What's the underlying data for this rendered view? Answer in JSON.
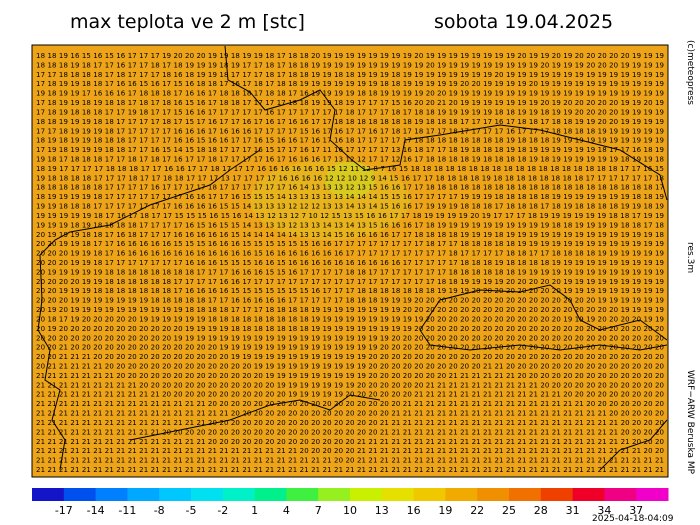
{
  "title": "max teplota ve 2 m [stc]",
  "date": "sobota 19.04.2025",
  "credit": "(c)meteopress",
  "resolution": "res.3m",
  "model": "WRF−ARW Beruska MP",
  "timestamp": "2025-04-18-04:09",
  "grid_rows": [
    "18 18 19 16 15 16 15 16 17 17 17 19 20 20 20 19 19 18 19 19 18 17 18 18 20 19 19 19 19 19 19 19 19 20 19 19 19 19 19 19 19 19 20 19 19 20 19 20 20 20 20 20 19 19 19",
    "18 18 18 19 18 17 17 16 17 17 18 17 18 19 19 19 18 19 17 17 18 17 18 18 19 19 19 19 19 19 19 19 19 19 20 19 19 19 19 19 19 19 19 19 20 19 19 19 20 20 20 19 19 19 19",
    "17 17 18 18 18 18 17 18 17 17 17 18 16 18 19 19 18 17 17 17 18 17 18 18 19 19 18 18 19 19 19 18 19 19 19 19 19 19 19 19 20 19 19 19 19 19 19 19 19 19 19 19 19 19 19",
    "17 18 19 19 18 18 17 16 16 15 16 17 15 16 18 18 17 16 17 18 17 18 18 19 19 19 19 19 19 19 18 18 19 19 19 19 19 20 20 19 19 19 19 20 19 19 19 19 19 19 19 19 19 19 19",
    "19 18 19 19 17 16 16 16 17 18 18 18 17 16 16 17 18 18 18 17 18 18 17 16 19 19 19 19 18 18 19 19 19 19 20 20 19 19 19 19 19 19 19 19 19 19 19 19 19 19 19 19 19 19 19",
    "17 18 19 19 18 19 18 18 17 18 17 18 16 15 16 17 18 18 17 17 17 17 18 18 19 19 18 19 17 17 17 15 16 20 20 21 20 19 19 19 19 19 19 19 20 19 20 20 20 20 20 19 19 20 19",
    "17 18 19 18 18 18 17 17 19 18 17 17 15 16 16 17 17 17 17 17 16 17 17 17 17 17 17 18 17 17 17 18 17 18 18 19 19 19 19 19 18 18 19 19 18 19 19 20 20 20 20 19 19 19 19",
    "18 18 19 19 19 18 18 17 17 17 17 18 17 15 17 16 17 17 16 17 16 17 16 16 17 17 18 18 18 18 18 18 18 19 18 18 18 17 17 17 16 17 18 18 17 18 18 19 19 20 20 19 19 19 19",
    "17 17 18 19 19 19 18 17 17 17 17 17 16 16 16 17 16 16 16 17 17 17 17 15 16 17 16 17 17 16 17 18 17 18 17 17 18 17 17 17 17 16 17 17 17 18 18 18 18 19 19 19 19 19 19",
    "18 19 18 19 19 18 18 18 17 17 17 17 16 16 15 16 16 17 17 16 15 16 16 17 16 17 16 18 17 17 17 17 17 18 18 18 18 18 18 18 18 19 18 18 18 19 19 19 19 19 19 19 19 19 19",
    "17 19 18 19 19 19 18 18 17 17 16 15 14 15 18 18 17 17 17 16 15 17 17 16 17 11 16 17 17 17 17 13 16 18 17 17 18 19 18 18 18 19 18 19 19 19 19 19 19 18 17 17 16 18 19",
    "19 18 17 18 18 18 17 17 18 17 18 17 16 17 17 18 17 17 17 17 16 17 16 16 16 17 13 12 12 17 17 12 16 17 18 18 18 18 19 18 18 18 18 19 18 19 19 19 19 19 19 18 19 19 18",
    "18 19 17 17 17 17 18 18 18 17 17 16 16 17 17 18 17 17 17 16 16 16 16 16 16 15 12 11 12 8 7 16 15 18 18 18 18 18 18 18 18 18 18 18 18 18 18 18 18 18 18 17 17 16 15",
    "19 18 18 18 18 17 17 17 18 17 17 18 18 17 17 17 13 17 17 17 17 16 16 16 16 12 12 10 12 9 14 15 16 17 17 18 18 18 18 19 18 18 18 18 18 18 18 18 17 17 17 17 17 17 18",
    "18 18 18 18 18 18 17 17 17 17 16 17 17 17 17 18 17 17 17 17 17 17 16 14 13 13 13 12 13 15 16 16 17 17 18 18 18 18 18 18 18 18 18 18 18 18 18 18 18 18 18 18 18 18 17",
    "18 19 19 19 19 18 17 17 17 17 17 17 17 16 16 17 17 16 15 15 15 14 13 13 13 13 13 14 14 14 15 15 16 17 17 17 17 19 19 19 18 18 18 18 18 19 19 19 19 19 19 19 18 18 19",
    "19 19 18 18 18 17 17 17 17 17 17 17 16 16 16 16 15 15 14 13 13 13 12 12 12 13 13 14 13 14 15 16 16 17 19 19 19 18 18 18 17 18 18 18 17 18 19 18 18 18 18 19 19 18 19",
    "19 19 19 19 19 18 17 16 17 18 17 17 15 15 15 16 15 16 14 13 12 13 12 7 10 12 15 13 15 16 16 17 17 18 19 19 19 19 20 19 17 17 17 18 19 19 19 19 19 19 18 18 17 19 19",
    "19 19 19 18 19 18 18 18 18 17 17 17 17 16 15 16 15 15 14 13 13 13 12 13 13 14 13 14 13 15 16 16 16 17 18 19 19 19 19 19 19 19 19 19 19 18 18 19 19 19 19 18 18 17 18",
    "20 19 19 19 18 18 17 16 18 17 17 17 16 16 16 16 16 15 14 14 14 14 14 13 13 14 15 16 16 16 16 17 17 18 18 18 18 19 19 19 18 19 19 19 19 19 19 19 19 19 19 19 19 19 18",
    "20 20 19 19 18 17 17 16 16 16 16 16 15 15 15 16 16 16 15 15 15 15 15 15 16 16 17 17 17 17 17 17 17 17 18 17 17 18 18 18 18 18 19 19 19 19 19 19 19 19 19 19 19 19 19",
    "20 20 20 19 19 18 17 16 16 16 16 16 16 16 16 16 16 16 16 15 16 16 16 16 16 16 16 17 17 17 17 17 17 17 17 17 18 17 17 17 17 18 18 17 17 18 18 18 18 19 19 19 19 19 19",
    "20 20 20 19 19 18 17 17 17 17 17 17 17 16 16 16 15 15 15 16 16 15 16 16 16 16 16 16 16 16 16 16 17 17 17 17 17 18 18 18 19 18 18 18 18 19 19 19 19 19 19 19 19 19 19",
    "20 19 19 19 19 19 18 18 18 18 18 18 18 18 17 17 17 16 16 16 15 15 16 17 17 17 17 18 18 17 17 17 17 17 17 17 18 18 18 18 18 18 19 19 19 19 19 19 19 19 19 19 19 19 19",
    "20 20 20 20 19 19 18 18 18 18 18 18 17 17 17 17 16 16 17 17 17 17 17 17 17 17 17 17 17 17 17 17 17 17 17 18 18 19 19 19 19 20 20 20 20 20 19 19 19 19 19 19 19 19 19",
    "20 20 19 19 19 18 18 18 18 18 18 18 17 16 16 16 16 15 15 15 15 15 15 15 16 17 17 17 18 18 18 18 18 18 18 19 19 19 20 20 20 20 20 20 20 20 19 19 19 19 19 19 19 19 19",
    "20 20 20 19 19 19 19 19 19 19 18 18 18 18 18 17 17 16 16 16 16 16 17 17 17 17 17 18 18 18 19 19 19 20 20 20 20 20 20 20 20 20 20 20 20 20 20 20 20 19 19 19 19 19 19",
    "20 19 20 19 19 19 19 19 19 19 19 19 19 18 18 18 18 17 17 17 18 18 18 18 19 19 19 19 19 19 19 19 20 20 20 20 20 20 20 20 20 20 20 20 20 20 20 20 20 20 20 19 19 19 19",
    "20 18 17 19 20 20 20 20 20 19 19 19 19 19 19 18 18 18 18 18 18 18 18 18 19 19 19 19 19 19 19 19 19 19 20 20 20 20 20 20 20 20 20 20 20 20 19 19 19 20 20 20 20 19 19",
    "20 19 20 20 20 20 20 20 20 20 20 20 20 19 19 19 19 18 18 18 18 18 18 18 19 19 19 19 19 19 19 19 19 20 20 20 20 20 20 20 20 20 20 20 20 20 20 20 20 20 20 20 20 20 20",
    "20 20 20 20 20 20 20 20 20 20 20 20 19 19 19 19 19 19 19 19 19 19 19 19 19 19 19 19 19 19 19 20 20 20 20 20 20 20 20 20 20 20 20 20 20 20 20 20 20 20 20 20 20 20 20",
    "20 20 21 20 20 20 20 20 20 20 20 20 20 20 20 20 19 19 19 19 19 19 19 19 19 19 19 19 19 19 20 20 20 20 20 20 20 20 20 20 20 20 20 20 20 20 20 20 20 20 20 20 20 20 20",
    "20 20 21 21 21 20 20 20 20 20 20 20 20 20 20 20 20 19 19 19 19 19 19 19 19 19 19 19 19 20 20 20 20 20 20 20 20 20 20 20 20 20 20 20 20 20 20 20 20 20 20 20 20 20 20",
    "20 21 21 21 21 21 20 20 20 20 20 20 20 20 20 20 20 20 20 19 19 19 19 19 19 19 19 19 19 20 20 20 20 20 20 20 20 20 20 21 21 20 20 20 20 20 20 20 20 20 20 20 20 20 20",
    "21 21 21 21 21 21 21 20 20 20 20 20 20 20 20 20 20 20 20 20 19 19 19 19 19 19 19 19 19 20 20 20 20 20 20 20 21 21 21 21 21 21 20 20 20 20 20 20 20 20 20 20 20 20 20",
    "21 21 21 21 21 21 21 21 21 20 20 20 20 20 20 20 20 20 20 20 20 19 19 19 19 19 19 19 20 20 20 20 20 20 21 21 21 21 21 21 21 21 21 21 20 20 20 20 20 20 20 20 20 20 20",
    "21 21 21 21 21 21 21 21 21 21 21 20 20 20 20 20 20 20 20 20 20 20 19 19 19 19 19 20 20 20 20 20 20 21 21 21 21 21 21 21 21 21 21 21 21 21 20 20 20 20 20 20 20 20 20",
    "21 21 21 21 21 21 21 21 21 21 21 21 21 21 21 20 20 20 20 20 20 20 20 20 20 20 20 20 20 20 20 20 21 21 21 21 21 21 21 21 21 21 21 21 21 21 21 21 20 20 20 20 20 20 20",
    "21 21 21 21 21 21 21 21 21 21 21 21 21 21 21 21 21 20 20 20 20 20 20 20 20 20 20 20 20 20 20 21 21 21 21 21 21 21 21 21 21 21 21 21 21 21 21 21 21 21 20 20 20 20 20",
    "21 21 21 21 21 21 21 21 21 21 21 21 21 21 21 20 20 20 20 20 20 20 20 20 20 20 20 20 20 20 21 21 21 21 21 21 21 21 21 21 21 21 21 21 21 21 21 21 21 21 21 20 20 20 20",
    "21 21 21 21 21 21 21 21 21 21 21 20 20 20 20 20 20 20 20 20 20 20 20 20 20 20 20 20 20 20 21 21 21 21 21 21 21 21 21 21 21 21 21 21 21 21 21 21 21 21 21 20 20 20 20",
    "21 21 21 21 21 21 21 21 21 21 21 21 21 21 21 20 20 20 20 20 20 20 20 20 20 20 20 20 21 21 21 21 21 21 21 21 21 21 21 21 21 21 21 21 21 21 21 21 21 21 21 21 20 20 20",
    "21 21 21 21 21 21 21 21 21 21 21 21 21 21 21 21 21 21 21 21 21 21 21 20 20 20 20 20 21 21 21 21 21 21 21 21 21 21 21 21 21 21 21 21 21 21 21 21 21 21 21 21 21 20 20",
    "21 21 21 21 21 21 21 21 21 21 21 21 21 21 21 21 21 21 21 21 21 21 21 21 21 21 20 20 21 21 21 21 21 21 21 21 21 21 21 21 21 21 21 21 21 21 21 21 21 21 21 21 21 21 21",
    "21 21 21 21 21 21 21 21 21 21 21 21 21 21 21 21 21 21 21 21 21 21 21 21 21 21 21 21 21 21 21 21 21 21 21 21 21 21 21 21 21 21 21 21 21 21 21 21 21 21 21 21 21 21 21"
  ],
  "colorbar": {
    "ticks": [
      -17,
      -14,
      -11,
      -8,
      -5,
      -2,
      1,
      4,
      7,
      10,
      13,
      16,
      19,
      22,
      25,
      28,
      31,
      34,
      37
    ],
    "colors": [
      "#1414c8",
      "#0050f0",
      "#0080ff",
      "#00a8ff",
      "#00c8ff",
      "#00e0f0",
      "#00f0c8",
      "#00f08c",
      "#40f040",
      "#96f020",
      "#c8f000",
      "#e6e000",
      "#f0c800",
      "#f0aa00",
      "#f09000",
      "#f07000",
      "#f04000",
      "#f00028",
      "#f00082",
      "#f000c8"
    ]
  }
}
